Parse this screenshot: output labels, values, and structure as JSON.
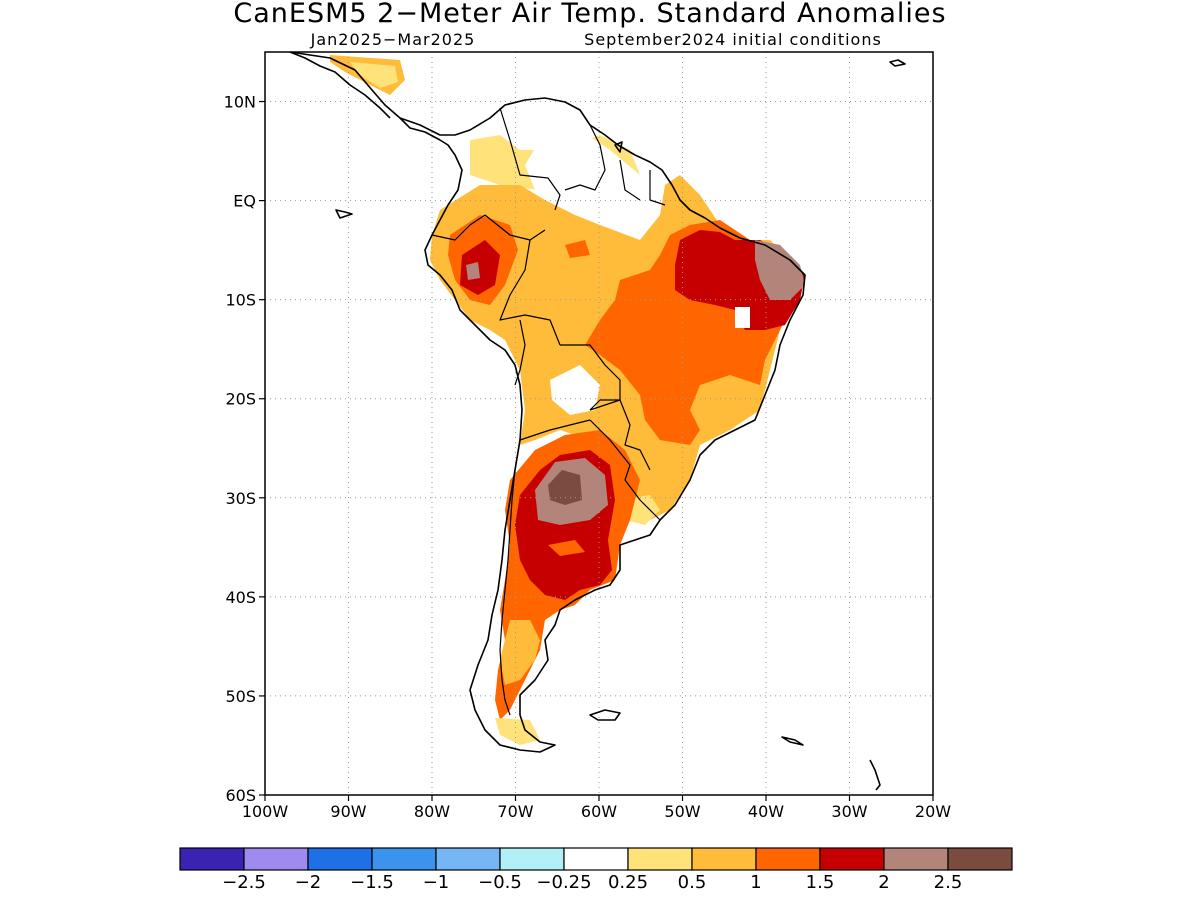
{
  "title": "CanESM5 2−Meter Air Temp. Standard Anomalies",
  "subtitle_left": "Jan2025−Mar2025",
  "subtitle_right": "September2024 initial conditions",
  "map": {
    "lon_range": [
      -100,
      -20
    ],
    "lat_range": [
      -60,
      15
    ],
    "lon_ticks": [
      "100W",
      "90W",
      "80W",
      "70W",
      "60W",
      "50W",
      "40W",
      "30W",
      "20W"
    ],
    "lat_ticks": [
      "10N",
      "EQ",
      "10S",
      "20S",
      "30S",
      "40S",
      "50S",
      "60S"
    ],
    "grid": true
  },
  "colorbar": {
    "colors": [
      "#3a22b3",
      "#9f8aef",
      "#1f6fe6",
      "#3c93ee",
      "#77b6f4",
      "#b0f0f6",
      "#ffffff",
      "#ffe37a",
      "#ffbb3a",
      "#ff6600",
      "#c60000",
      "#b38479",
      "#7a4b3e"
    ],
    "labels": [
      "−2.5",
      "−2",
      "−1.5",
      "−1",
      "−0.5",
      "−0.25",
      "0.25",
      "0.5",
      "1",
      "1.5",
      "2",
      "2.5"
    ]
  }
}
